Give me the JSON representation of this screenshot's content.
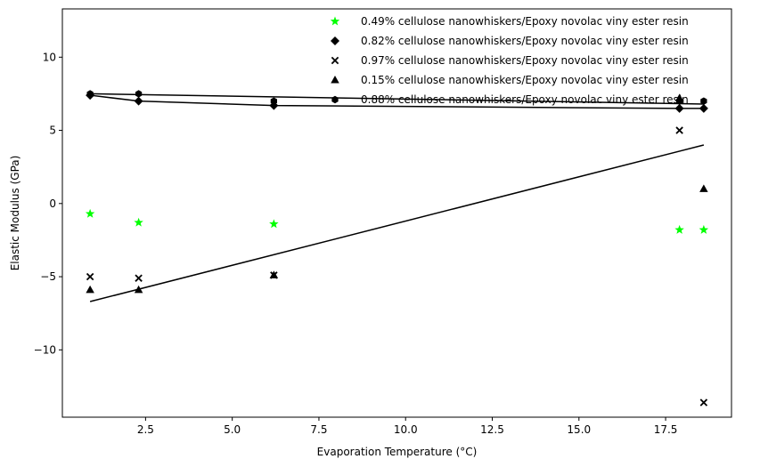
{
  "chart_data": {
    "type": "scatter",
    "title": "",
    "xlabel": "Evaporation Temperature (°C)",
    "ylabel": "Elastic Modulus (GPa)",
    "xlim": [
      0.1,
      19.4
    ],
    "ylim": [
      -14.6,
      13.3
    ],
    "xticks": [
      2.5,
      5.0,
      7.5,
      10.0,
      12.5,
      15.0,
      17.5
    ],
    "xtick_labels": [
      "2.5",
      "5.0",
      "7.5",
      "10.0",
      "12.5",
      "15.0",
      "17.5"
    ],
    "yticks": [
      -10,
      -5,
      0,
      5,
      10
    ],
    "ytick_labels": [
      "−10",
      "−5",
      "0",
      "5",
      "10"
    ],
    "grid": false,
    "legend_position": "top-right",
    "series": [
      {
        "name": "0.49% cellulose nanowhiskers/Epoxy novolac viny ester resin",
        "marker": "star",
        "color": "#00ff00",
        "points": [
          [
            0.9,
            -0.7
          ],
          [
            2.3,
            -1.3
          ],
          [
            6.2,
            -1.4
          ],
          [
            17.9,
            -1.8
          ],
          [
            18.6,
            -1.8
          ]
        ]
      },
      {
        "name": "0.82% cellulose nanowhiskers/Epoxy novolac viny ester resin",
        "marker": "diamond",
        "color": "#000000",
        "points": [
          [
            0.9,
            7.4
          ],
          [
            2.3,
            7.0
          ],
          [
            6.2,
            6.7
          ],
          [
            17.9,
            6.5
          ],
          [
            18.6,
            6.5
          ]
        ]
      },
      {
        "name": "0.97% cellulose nanowhiskers/Epoxy novolac viny ester resin",
        "marker": "x",
        "color": "#000000",
        "points": [
          [
            0.9,
            -5.0
          ],
          [
            2.3,
            -5.1
          ],
          [
            6.2,
            -4.9
          ],
          [
            17.9,
            5.0
          ],
          [
            18.6,
            -13.6
          ]
        ]
      },
      {
        "name": "0.15% cellulose nanowhiskers/Epoxy novolac viny ester resin",
        "marker": "triangle",
        "color": "#000000",
        "points": [
          [
            0.9,
            -5.9
          ],
          [
            2.3,
            -5.9
          ],
          [
            6.2,
            -4.9
          ],
          [
            17.9,
            7.2
          ],
          [
            18.6,
            1.0
          ]
        ]
      },
      {
        "name": "0.88% cellulose nanowhiskers/Epoxy novolac viny ester resin",
        "marker": "hexagon",
        "color": "#000000",
        "points": [
          [
            0.9,
            7.5
          ],
          [
            2.3,
            7.5
          ],
          [
            6.2,
            7.0
          ],
          [
            17.9,
            7.0
          ],
          [
            18.6,
            7.0
          ]
        ]
      }
    ],
    "fit_lines": [
      {
        "points": [
          [
            0.9,
            7.4
          ],
          [
            2.3,
            7.0
          ],
          [
            6.2,
            6.7
          ],
          [
            17.9,
            6.5
          ],
          [
            18.6,
            6.5
          ]
        ]
      },
      {
        "points": [
          [
            0.9,
            7.5
          ],
          [
            18.6,
            6.8
          ]
        ]
      },
      {
        "points": [
          [
            0.9,
            -6.7
          ],
          [
            18.6,
            4.0
          ]
        ]
      }
    ]
  }
}
